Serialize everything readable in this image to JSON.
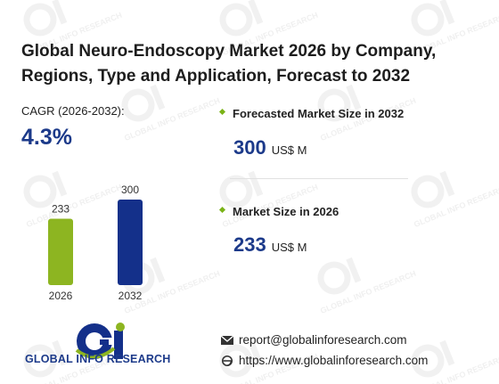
{
  "title": "Global Neuro-Endoscopy Market 2026 by Company, Regions, Type and Application, Forecast to 2032",
  "cagr": {
    "label": "CAGR (2026-2032):",
    "value": "4.3%"
  },
  "forecast": {
    "label": "Forecasted Market Size in 2032",
    "value": "300",
    "unit": "US$ M"
  },
  "current": {
    "label": "Market Size in 2026",
    "value": "233",
    "unit": "US$ M"
  },
  "brand": {
    "name": "GLOBAL INFO RESEARCH",
    "watermark": "GLOBAL INFO RESEARCH"
  },
  "contact": {
    "email": "report@globalinforesearch.com",
    "website": "https://www.globalinforesearch.com"
  },
  "colors": {
    "bar_2026": "#8db521",
    "bar_2032": "#14308a",
    "accent": "#1c3a8a",
    "bullet": "#7ab317"
  },
  "chart_data": {
    "type": "bar",
    "categories": [
      "2026",
      "2032"
    ],
    "values": [
      233,
      300
    ],
    "data_labels": [
      "233",
      "300"
    ],
    "ylim": [
      0,
      300
    ],
    "grid": false
  }
}
